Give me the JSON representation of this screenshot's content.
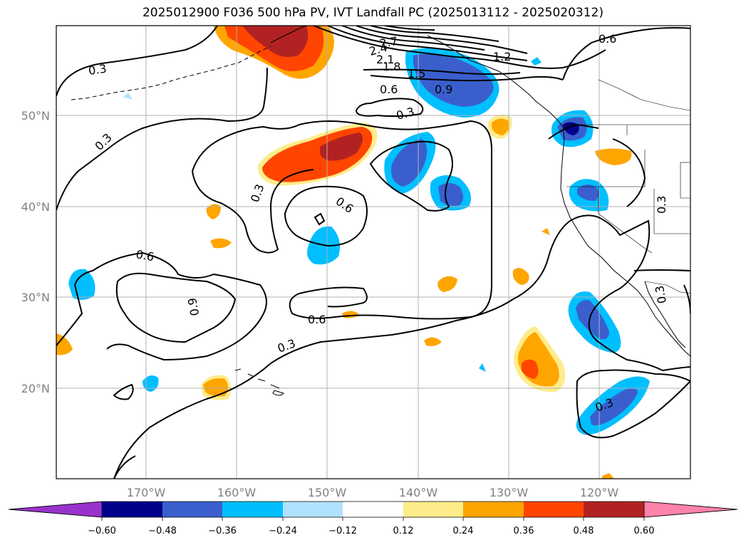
{
  "title": "2025012900 F036 500 hPa PV, IVT Landfall PC (2025013112 - 2025020312)",
  "map": {
    "lat_labels": [
      "50°N",
      "40°N",
      "30°N",
      "20°N"
    ],
    "lon_labels": [
      "170°W",
      "160°W",
      "150°W",
      "140°W",
      "130°W",
      "120°W"
    ],
    "contour_labels": [
      "0.3",
      "0.3",
      "0.6",
      "0.9",
      "1.5",
      "1.8",
      "2.1",
      "2.4",
      "2.7",
      "1.2",
      "0.6",
      "0.3",
      "0.3",
      "0.6",
      "0.6",
      "0.6",
      "0.9",
      "0.3",
      "0.3",
      "0.3",
      "0.3"
    ]
  },
  "colorbar": {
    "tick_labels": [
      "−0.60",
      "−0.48",
      "−0.36",
      "−0.24",
      "−0.12",
      "0.12",
      "0.24",
      "0.36",
      "0.48",
      "0.60"
    ],
    "colors": [
      "#9932cc",
      "#00008b",
      "#3a5fcd",
      "#00bfff",
      "#b0e2ff",
      "#ffffff",
      "#ffec8b",
      "#ffa500",
      "#ff4500",
      "#b22222",
      "#ff82ab"
    ]
  }
}
